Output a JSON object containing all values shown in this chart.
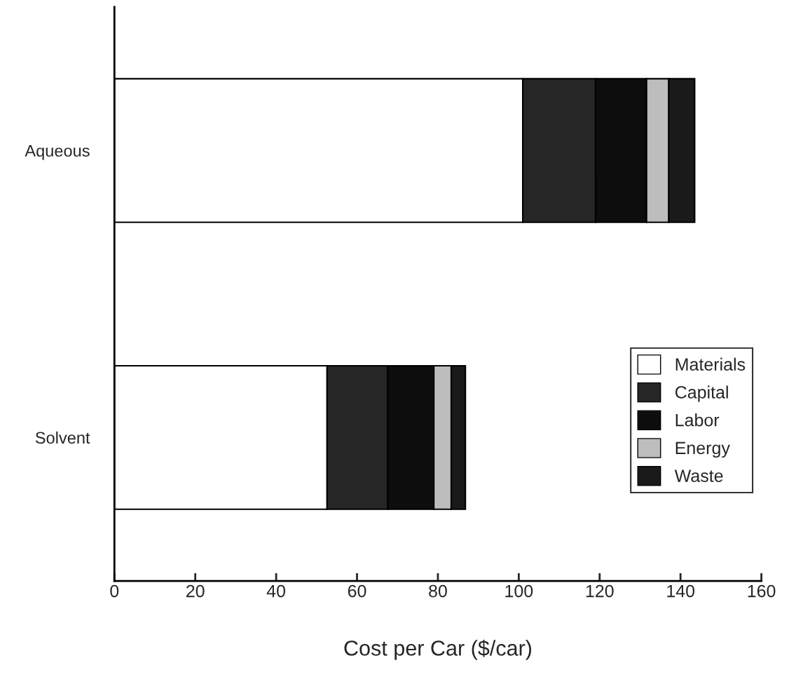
{
  "chart_data": {
    "type": "bar",
    "orientation": "horizontal",
    "stacked": true,
    "xlabel": "Cost per Car ($/car)",
    "categories": [
      "Aqueous",
      "Solvent"
    ],
    "series": [
      {
        "name": "Materials",
        "color": "#ffffff",
        "values": [
          101,
          52.6
        ]
      },
      {
        "name": "Capital",
        "color": "#262626",
        "values": [
          18,
          15
        ]
      },
      {
        "name": "Labor",
        "color": "#0d0d0d",
        "values": [
          12.6,
          11.4
        ]
      },
      {
        "name": "Energy",
        "color": "#bdbdbd",
        "values": [
          5.5,
          4.3
        ]
      },
      {
        "name": "Waste",
        "color": "#1a1a1a",
        "values": [
          6.4,
          3.5
        ]
      }
    ],
    "xlim": [
      0,
      160
    ],
    "xticks": [
      0,
      20,
      40,
      60,
      80,
      100,
      120,
      140,
      160
    ],
    "grid": false,
    "legend": "right"
  }
}
